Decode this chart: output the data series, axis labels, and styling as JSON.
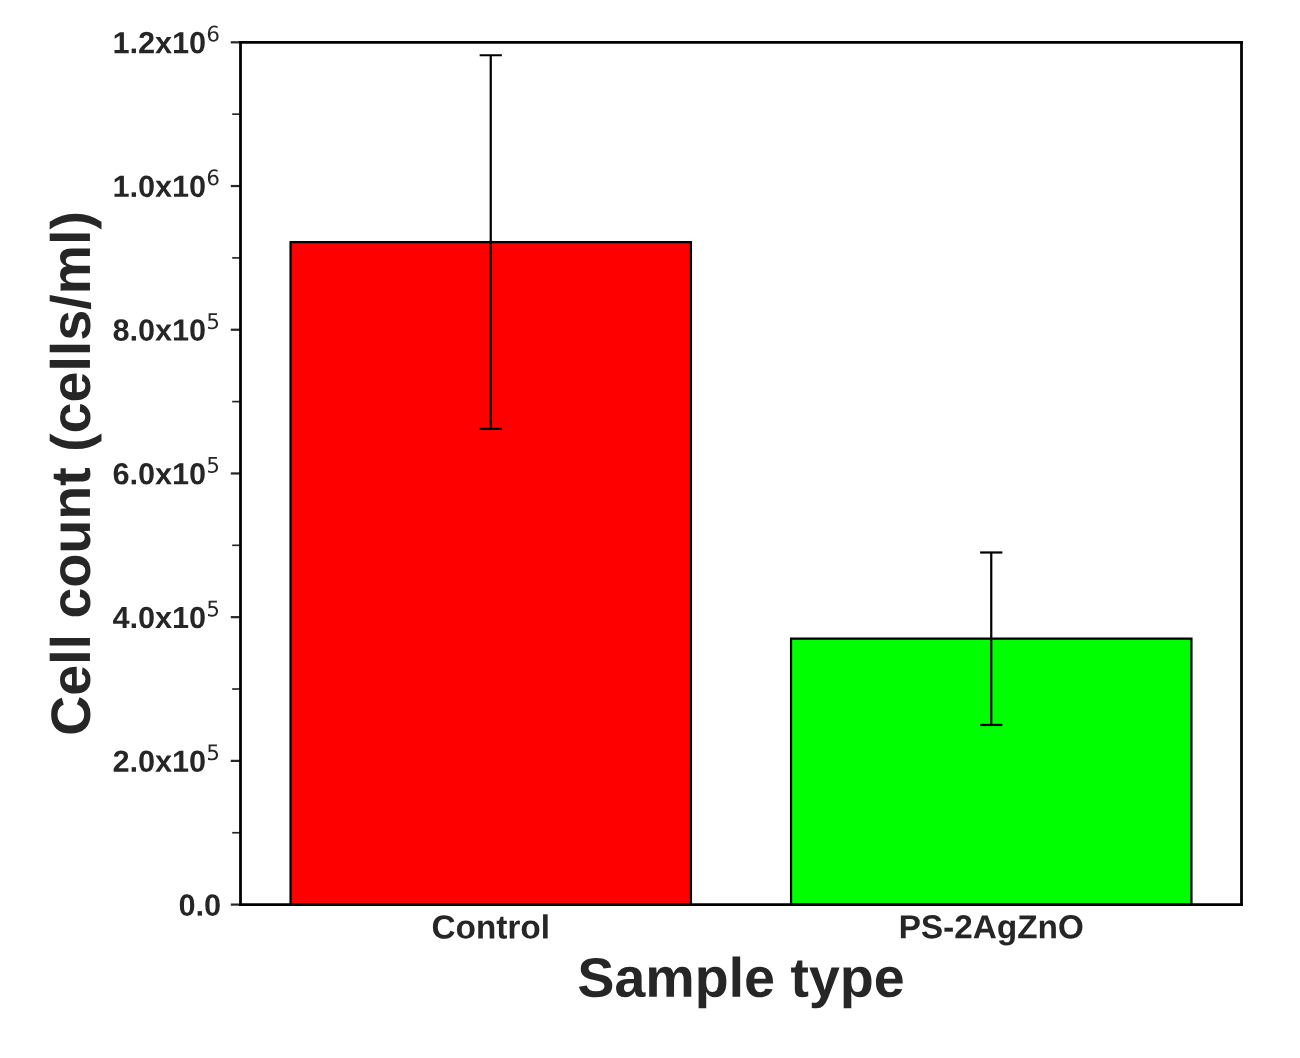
{
  "chart_data": {
    "type": "bar",
    "xlabel": "Sample type",
    "ylabel": "Cell count (cells/ml)",
    "categories": [
      "Control",
      "PS-2AgZnO"
    ],
    "values": [
      922000,
      370000
    ],
    "errors": [
      260000,
      120000
    ],
    "colors": [
      "#ff0000",
      "#00ff00"
    ],
    "ylim": [
      0,
      1200000
    ],
    "yticks": [
      {
        "value": 0,
        "label": "0.0"
      },
      {
        "value": 200000,
        "label": "2.0x10$^{5}$"
      },
      {
        "value": 400000,
        "label": "4.0x10$^{5}$"
      },
      {
        "value": 600000,
        "label": "6.0x10$^{5}$"
      },
      {
        "value": 800000,
        "label": "8.0x10$^{5}$"
      },
      {
        "value": 1000000,
        "label": "1.0x10$^{6}$"
      },
      {
        "value": 1200000,
        "label": "1.2x10$^{6}$"
      }
    ],
    "grid": false,
    "legend": false
  }
}
